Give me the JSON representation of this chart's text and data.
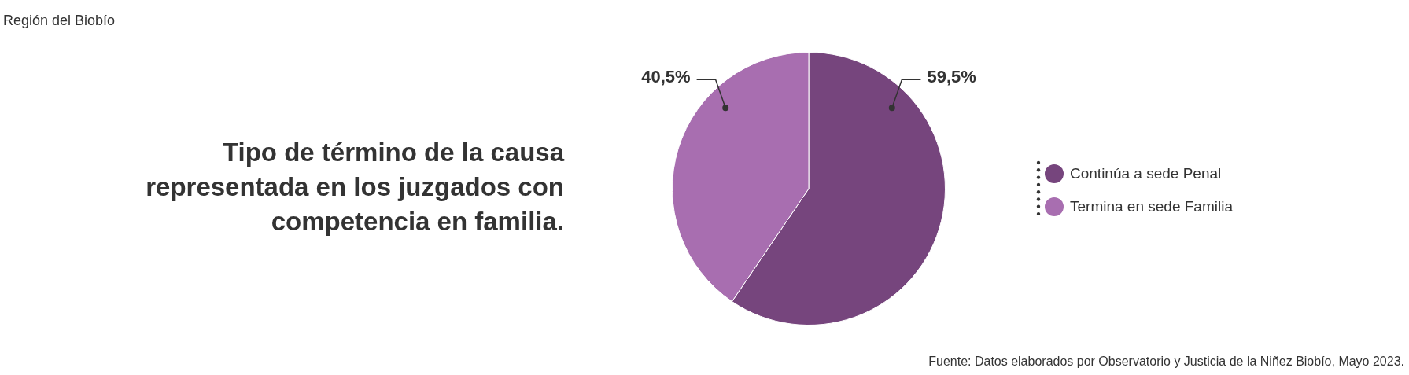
{
  "chart_data": {
    "type": "pie",
    "subtitle": "Región del Biobío",
    "title": "Tipo de término de la causa representada en los juzgados con competencia en familia.",
    "categories": [
      "Continúa a sede Penal",
      "Termina en sede Familia"
    ],
    "values": [
      59.5,
      40.5
    ],
    "colors": [
      "#76457d",
      "#a86eb0"
    ],
    "value_labels": [
      "59,5%",
      "40,5%"
    ],
    "legend": "right",
    "annotations": [
      "Fuente: Datos elaborados por Observatorio y Justicia de la Niñez Biobío, Mayo 2023."
    ]
  }
}
